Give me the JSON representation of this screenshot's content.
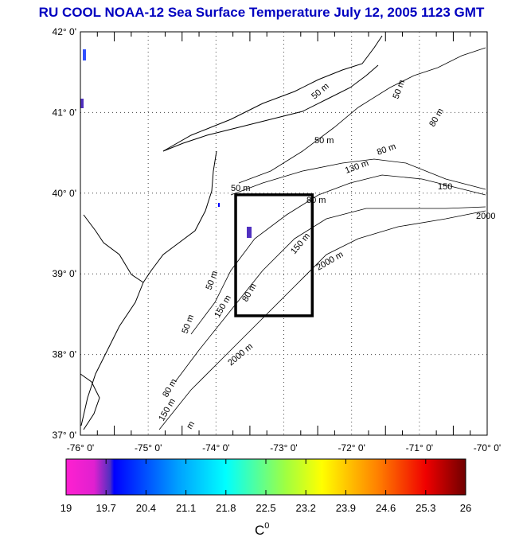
{
  "title": "RU COOL  NOAA-12 Sea Surface Temperature July 12, 2005 1123 GMT",
  "map": {
    "lon_range": [
      -76,
      -70
    ],
    "lat_range": [
      37,
      42
    ],
    "lon_labels": [
      "-76° 0'",
      "-75° 0'",
      "-74° 0'",
      "-73° 0'",
      "-72° 0'",
      "-71° 0'",
      "-70° 0'"
    ],
    "lat_labels": [
      "42° 0'",
      "41° 0'",
      "40° 0'",
      "39° 0'",
      "38° 0'",
      "37° 0'"
    ],
    "study_box": {
      "lon": [
        -73.71,
        -72.58
      ],
      "lat": [
        38.48,
        39.98
      ]
    },
    "contour_labels": [
      "50 m",
      "50 m",
      "80 m",
      "80 m",
      "130 m",
      "150",
      "50 m",
      "80 m",
      "150 m",
      "2000 m",
      "2000",
      "50 m",
      "80 m",
      "2000 m",
      "150 m",
      "50 m",
      "80 m",
      "150 m",
      "50 m",
      "m"
    ]
  },
  "colorbar": {
    "min": 19,
    "max": 26,
    "ticks": [
      "19",
      "19.7",
      "20.4",
      "21.1",
      "21.8",
      "22.5",
      "23.2",
      "23.9",
      "24.6",
      "25.3",
      "26"
    ],
    "label": "C",
    "label_sup": "0",
    "colors": [
      "#ff20d0",
      "#5030c0",
      "#0000ff",
      "#00a0ff",
      "#00ffff",
      "#a0ff40",
      "#ffff00",
      "#ff8000",
      "#ff2000",
      "#d00000",
      "#700000"
    ]
  }
}
